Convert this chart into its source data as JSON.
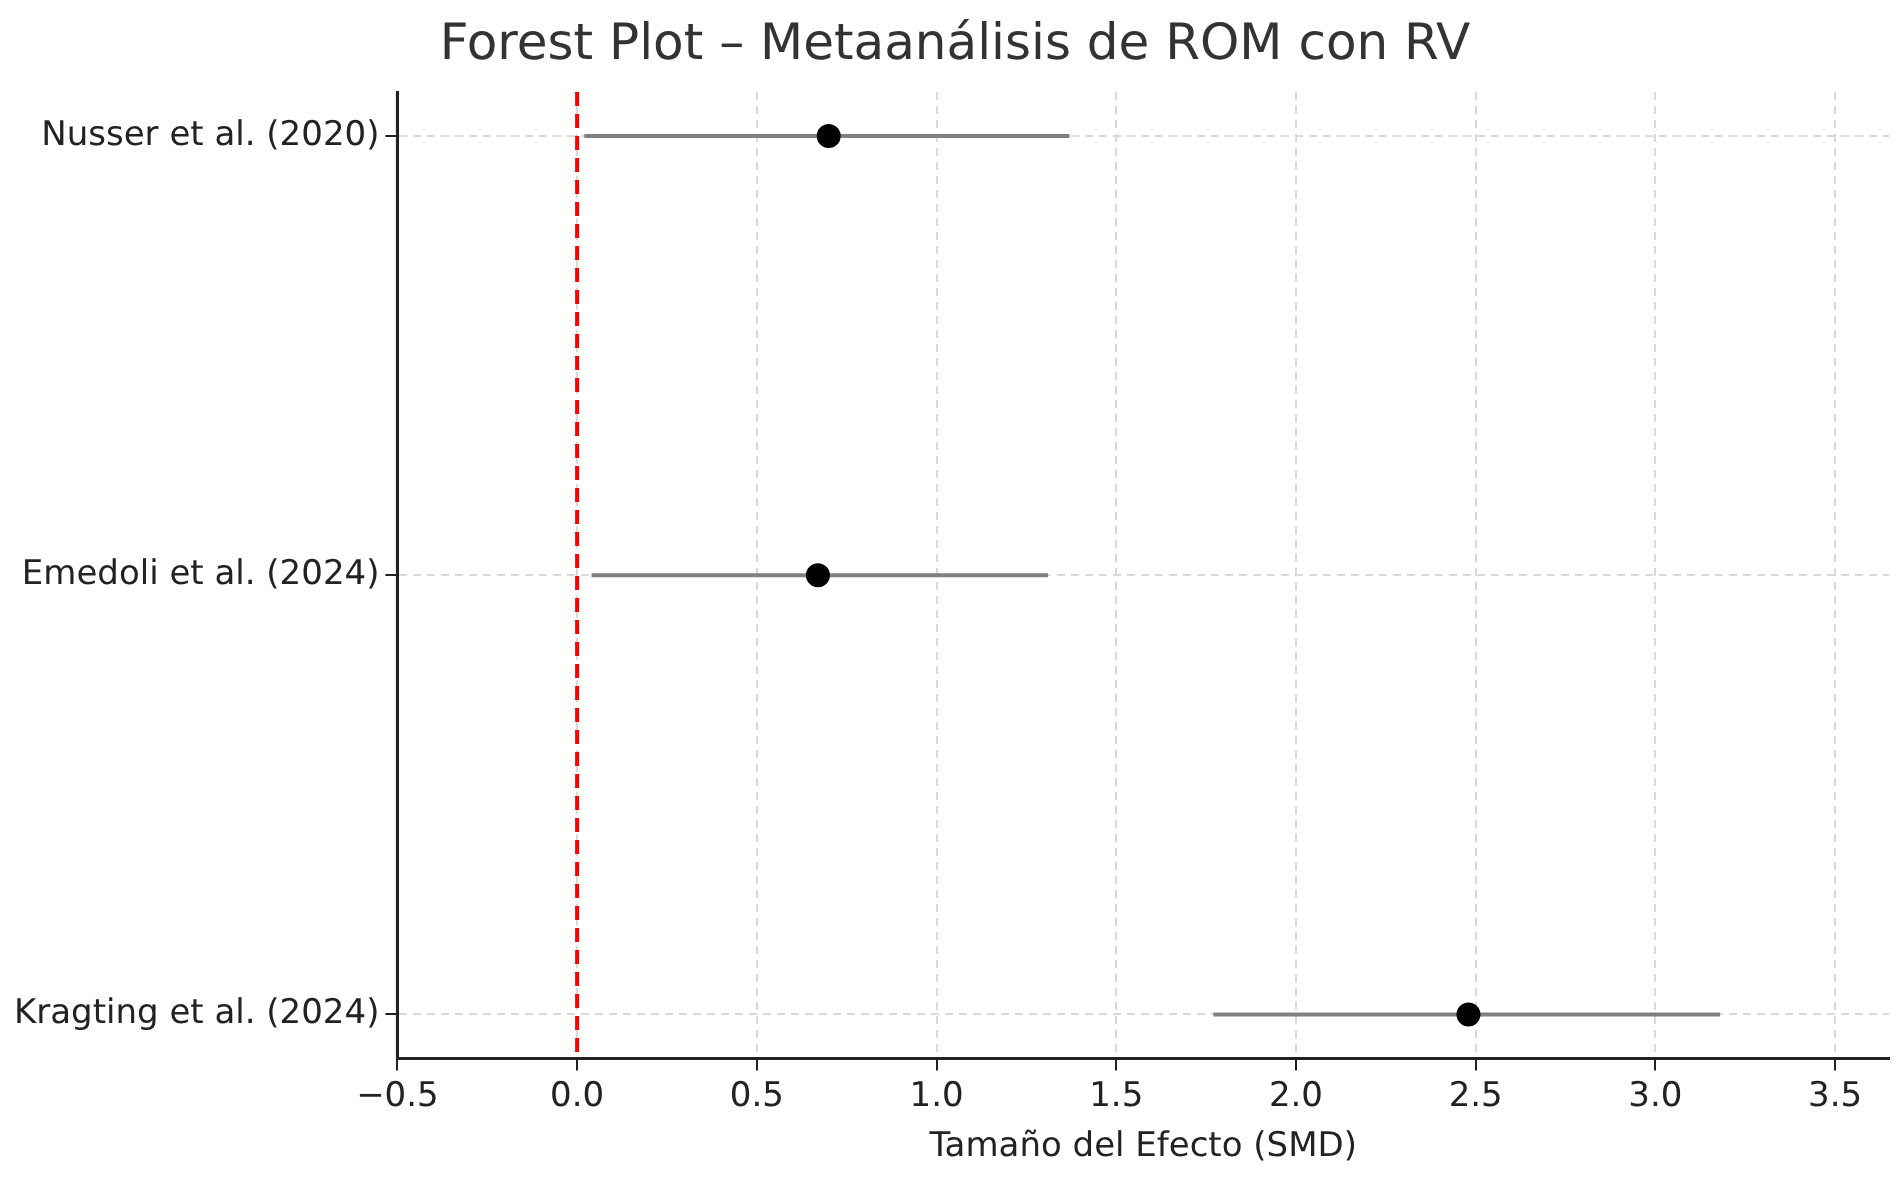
{
  "chart_data": {
    "type": "scatter",
    "title": "Forest Plot – Metaanálisis de ROM con RV",
    "xlabel": "Tamaño del Efecto (SMD)",
    "orientation": "horizontal",
    "categories": [
      "Nusser et al. (2020)",
      "Emedoli et al. (2024)",
      "Kragting et al. (2024)"
    ],
    "values": [
      0.7,
      0.67,
      2.48
    ],
    "errors": [
      [
        0.02,
        1.37
      ],
      [
        0.04,
        1.31
      ],
      [
        1.77,
        3.18
      ]
    ],
    "color": "#000000",
    "xlim": [
      -0.5,
      3.65
    ],
    "xticks": [
      {
        "value": -0.5,
        "label": "−0.5"
      },
      {
        "value": 0,
        "label": "0.0"
      },
      {
        "value": 0.5,
        "label": "0.5"
      },
      {
        "value": 1,
        "label": "1.0"
      },
      {
        "value": 1.5,
        "label": "1.5"
      },
      {
        "value": 2,
        "label": "2.0"
      },
      {
        "value": 2.5,
        "label": "2.5"
      },
      {
        "value": 3,
        "label": "3.0"
      },
      {
        "value": 3.5,
        "label": "3.5"
      }
    ],
    "ref_lines": [
      {
        "axis": "x",
        "value": 0,
        "color": "#ff0000",
        "line_style": "dashed"
      }
    ],
    "grid": true,
    "marker": "circle",
    "legend": false
  }
}
